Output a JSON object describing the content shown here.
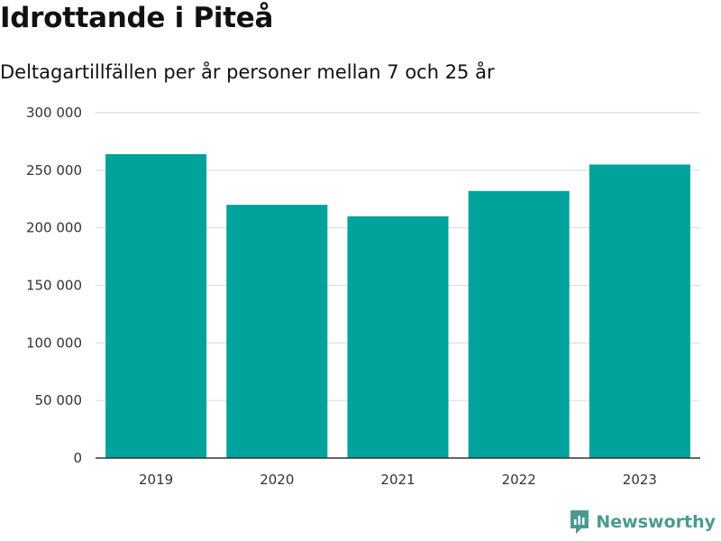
{
  "title": "Idrottande i Piteå",
  "subtitle": "Deltagartillfällen per år personer mellan 7 och 25 år",
  "brand": "Newsworthy",
  "colors": {
    "bar": "#00a39b",
    "grid": "#dddddd",
    "axis": "#333333",
    "brand": "#4a9a92"
  },
  "chart_data": {
    "type": "bar",
    "categories": [
      "2019",
      "2020",
      "2021",
      "2022",
      "2023"
    ],
    "values": [
      264000,
      220000,
      210000,
      232000,
      255000
    ],
    "ylim": [
      0,
      300000
    ],
    "yticks": [
      0,
      50000,
      100000,
      150000,
      200000,
      250000,
      300000
    ],
    "ytick_labels": [
      "0",
      "50 000",
      "100 000",
      "150 000",
      "200 000",
      "250 000",
      "300 000"
    ],
    "grid": true,
    "legend": "none"
  }
}
